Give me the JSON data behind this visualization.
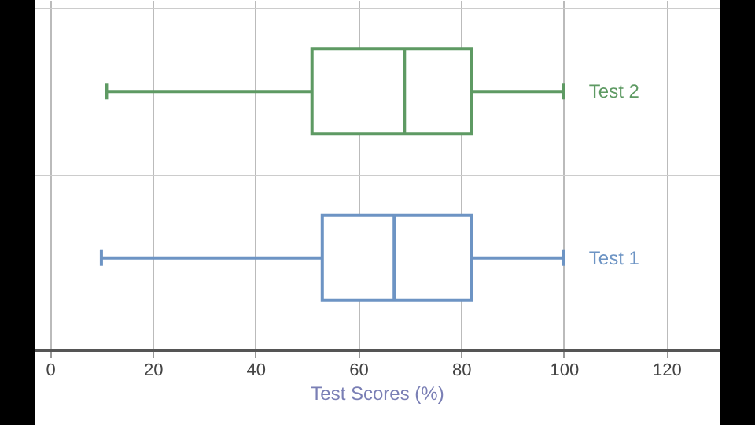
{
  "chart_data": {
    "type": "box",
    "xlabel": "Test Scores (%)",
    "categories": [
      "Test 2",
      "Test 1"
    ],
    "boxes": [
      {
        "low": 11,
        "q1": 51,
        "median": 69,
        "q3": 82,
        "high": 100
      },
      {
        "low": 10,
        "q1": 53,
        "median": 67,
        "q3": 82,
        "high": 100
      }
    ],
    "colors": [
      "#5e9a63",
      "#6d94c4"
    ],
    "orientation": "horizontal",
    "xlim": [
      -3,
      130.5
    ],
    "xticks": [
      0,
      20,
      40,
      60,
      80,
      100,
      120
    ],
    "grid": true,
    "tick_labels": "x"
  }
}
